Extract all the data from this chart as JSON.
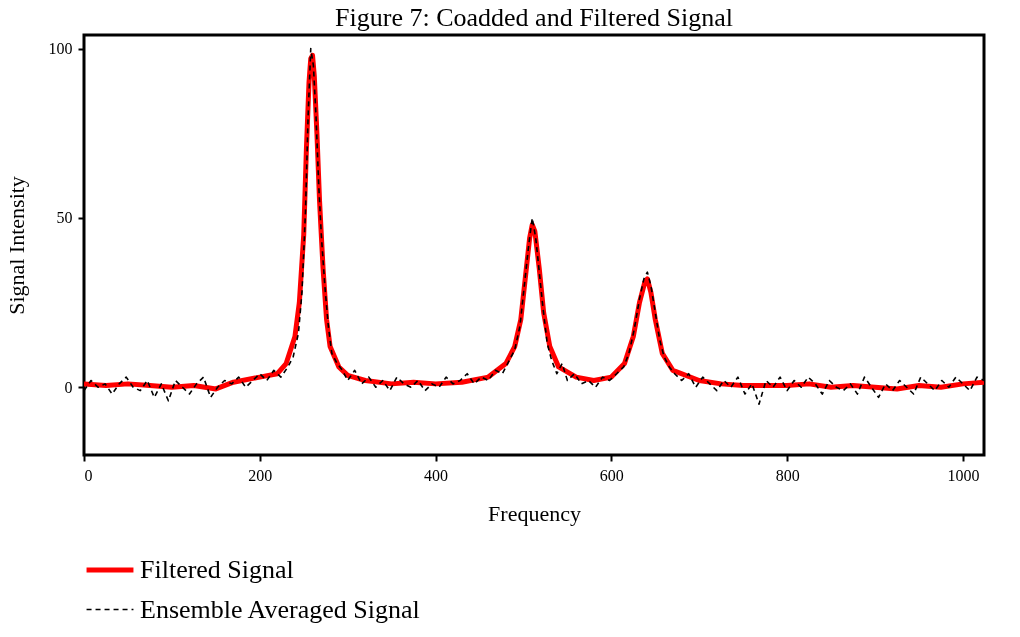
{
  "chart_data": {
    "type": "line",
    "title": "Figure 7: Coadded and Filtered Signal",
    "xlabel": "Frequency",
    "ylabel": "Signal Intensity",
    "xlim": [
      0,
      1024
    ],
    "ylim": [
      -20,
      104
    ],
    "xticks": [
      0,
      200,
      400,
      600,
      800,
      1000
    ],
    "yticks": [
      0,
      50,
      100
    ],
    "grid": false,
    "legend": "bottom",
    "series": [
      {
        "name": "Filtered Signal",
        "color": "#ff0000",
        "line_style": "solid",
        "x": [
          0,
          25,
          50,
          75,
          100,
          125,
          150,
          170,
          200,
          220,
          230,
          240,
          245,
          250,
          253,
          256,
          258,
          260,
          262,
          265,
          268,
          272,
          276,
          280,
          290,
          300,
          320,
          350,
          375,
          400,
          430,
          460,
          480,
          490,
          497,
          502,
          507,
          510,
          513,
          518,
          523,
          530,
          540,
          560,
          580,
          600,
          615,
          625,
          632,
          638,
          641,
          645,
          650,
          658,
          670,
          700,
          725,
          750,
          775,
          800,
          825,
          850,
          875,
          900,
          925,
          950,
          975,
          1000,
          1024
        ],
        "values": [
          1,
          0.5,
          1,
          0.5,
          0,
          0.5,
          -0.5,
          1.5,
          3,
          4,
          7,
          15,
          25,
          45,
          70,
          90,
          97,
          98,
          92,
          75,
          55,
          35,
          20,
          12,
          6,
          3.5,
          2,
          1,
          1.5,
          1,
          1.5,
          3,
          7,
          12,
          20,
          32,
          44,
          48,
          46,
          35,
          22,
          12,
          6,
          3,
          2,
          3,
          7,
          15,
          25,
          31,
          32,
          28,
          20,
          10,
          5,
          2,
          1,
          0.5,
          0.5,
          0.5,
          1,
          0,
          0.5,
          0,
          -0.5,
          0.5,
          0,
          1,
          1.5
        ]
      },
      {
        "name": "Ensemble Averaged Signal",
        "color": "#000000",
        "line_style": "dashed",
        "x": [
          0,
          8,
          16,
          24,
          32,
          40,
          48,
          56,
          64,
          72,
          80,
          88,
          96,
          104,
          112,
          120,
          128,
          136,
          144,
          152,
          160,
          168,
          176,
          184,
          192,
          200,
          208,
          216,
          224,
          232,
          238,
          244,
          248,
          252,
          255,
          258,
          261,
          264,
          267,
          270,
          274,
          278,
          282,
          288,
          294,
          300,
          308,
          316,
          324,
          332,
          340,
          348,
          356,
          364,
          372,
          380,
          388,
          396,
          404,
          412,
          420,
          428,
          436,
          444,
          452,
          460,
          468,
          476,
          484,
          490,
          496,
          501,
          506,
          510,
          514,
          518,
          522,
          527,
          532,
          538,
          544,
          550,
          558,
          566,
          574,
          582,
          590,
          598,
          606,
          614,
          620,
          626,
          632,
          637,
          641,
          645,
          650,
          655,
          660,
          666,
          672,
          680,
          688,
          696,
          704,
          712,
          720,
          728,
          736,
          744,
          752,
          760,
          768,
          776,
          784,
          792,
          800,
          808,
          816,
          824,
          832,
          840,
          848,
          856,
          864,
          872,
          880,
          888,
          896,
          904,
          912,
          920,
          928,
          936,
          944,
          952,
          960,
          968,
          976,
          984,
          992,
          1000,
          1008,
          1016,
          1024
        ],
        "values": [
          -1,
          2,
          0,
          1,
          -2,
          1,
          3,
          0,
          -1,
          2,
          -3,
          1,
          -4,
          2,
          0,
          -2,
          1,
          3,
          -3,
          0,
          2,
          1,
          3,
          0,
          2,
          4,
          2,
          5,
          3,
          6,
          9,
          16,
          28,
          52,
          80,
          100,
          95,
          80,
          60,
          45,
          30,
          18,
          10,
          7,
          5,
          2,
          5,
          1,
          3,
          0,
          2,
          -1,
          3,
          1,
          0,
          2,
          -1,
          1,
          0,
          3,
          1,
          2,
          4,
          1,
          3,
          2,
          5,
          4,
          8,
          11,
          18,
          30,
          42,
          50,
          44,
          34,
          24,
          13,
          8,
          4,
          7,
          2,
          4,
          1,
          2,
          0,
          3,
          2,
          4,
          6,
          10,
          17,
          26,
          32,
          34,
          30,
          22,
          14,
          9,
          6,
          4,
          2,
          4,
          0,
          3,
          1,
          -1,
          2,
          0,
          3,
          -2,
          1,
          -5,
          2,
          0,
          3,
          -1,
          2,
          0,
          3,
          1,
          -2,
          2,
          0,
          -1,
          1,
          -2,
          3,
          0,
          -3,
          1,
          -1,
          2,
          0,
          -2,
          3,
          1,
          -1,
          2,
          0,
          3,
          1,
          -1,
          3,
          2
        ]
      }
    ]
  }
}
